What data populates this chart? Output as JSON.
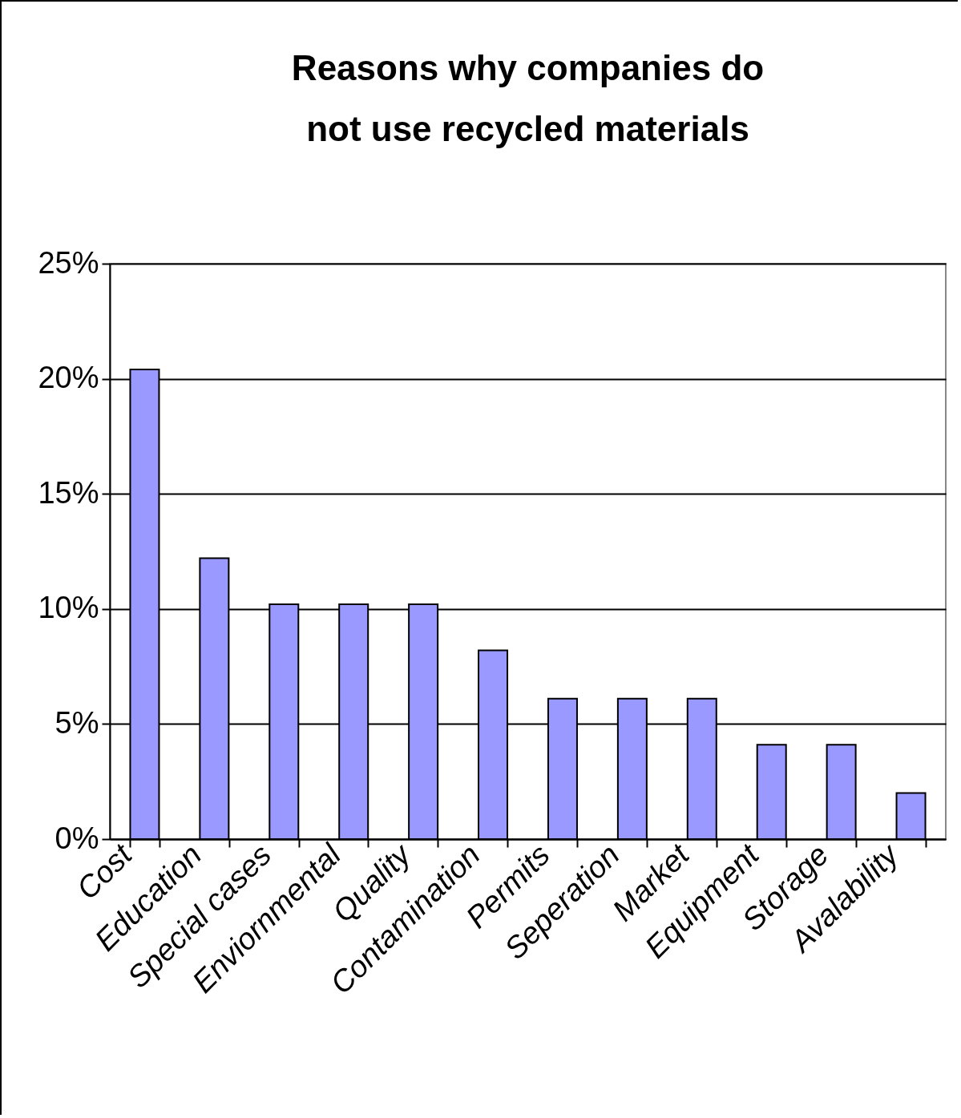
{
  "chart_data": {
    "type": "bar",
    "title": "Reasons why companies do not use recycled materials",
    "categories": [
      "Cost",
      "Education",
      "Special cases",
      "Enviornmental",
      "Quality",
      "Contamination",
      "Permits",
      "Seperation",
      "Market",
      "Equipment",
      "Storage",
      "Avalability"
    ],
    "values": [
      20.4,
      12.2,
      10.2,
      10.2,
      10.2,
      8.2,
      6.1,
      6.1,
      6.1,
      4.1,
      4.1,
      2.0
    ],
    "color": "#9999ff",
    "ylim": [
      0,
      25
    ],
    "yticks": [
      {
        "value": 0,
        "label": "0%"
      },
      {
        "value": 5,
        "label": "5%"
      },
      {
        "value": 10,
        "label": "10%"
      },
      {
        "value": 15,
        "label": "15%"
      },
      {
        "value": 20,
        "label": "20%"
      },
      {
        "value": 25,
        "label": "25%"
      }
    ],
    "grid": "y"
  }
}
